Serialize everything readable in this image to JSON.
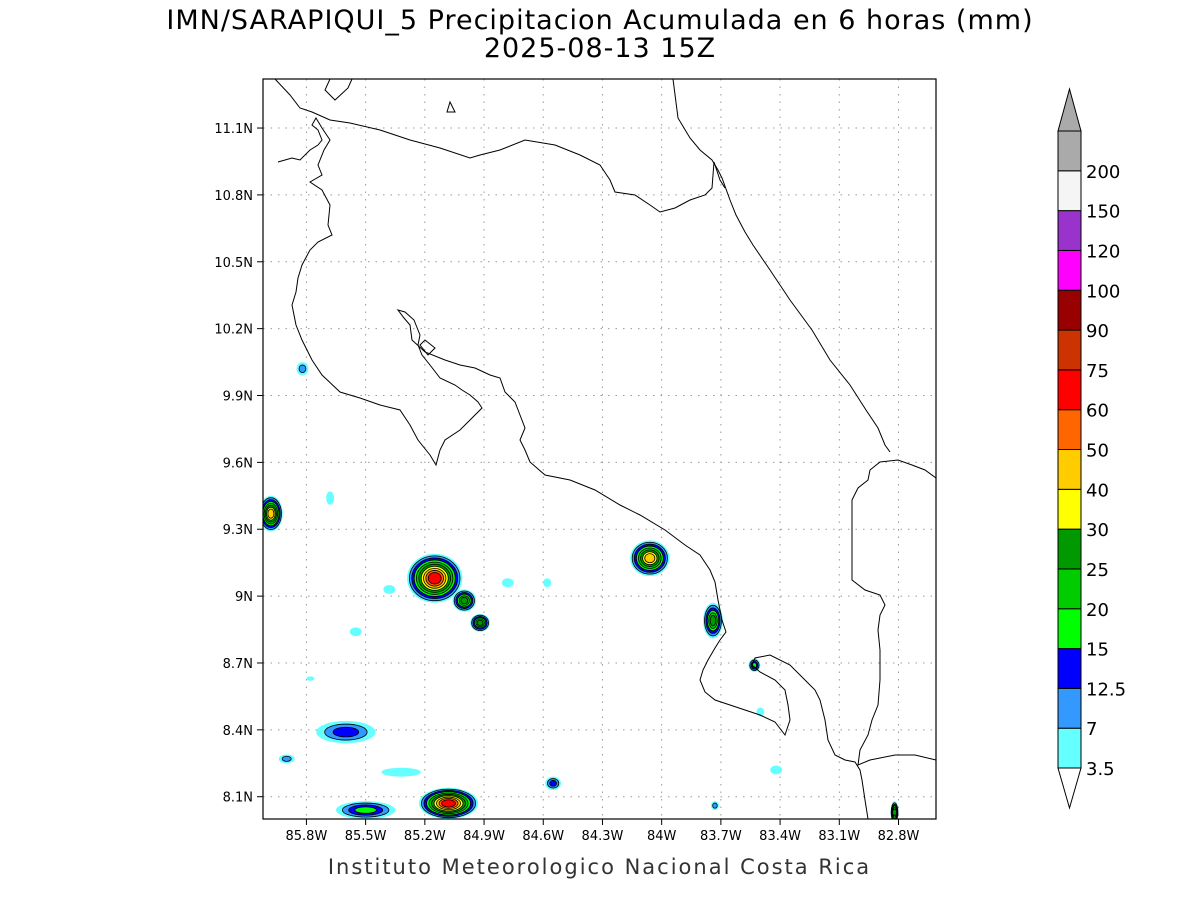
{
  "title": {
    "line1": "IMN/SARAPIQUI_5 Precipitacion Acumulada en 6 horas (mm)",
    "line2": "2025-08-13 15Z"
  },
  "footer": "Instituto Meteorologico Nacional Costa Rica",
  "map": {
    "lon_range": [
      -86.02,
      -82.61
    ],
    "lat_range": [
      8.0,
      11.32
    ],
    "lon_ticks": [
      {
        "value": -85.8,
        "label": "85.8W"
      },
      {
        "value": -85.5,
        "label": "85.5W"
      },
      {
        "value": -85.2,
        "label": "85.2W"
      },
      {
        "value": -84.9,
        "label": "84.9W"
      },
      {
        "value": -84.6,
        "label": "84.6W"
      },
      {
        "value": -84.3,
        "label": "84.3W"
      },
      {
        "value": -84.0,
        "label": "84W"
      },
      {
        "value": -83.7,
        "label": "83.7W"
      },
      {
        "value": -83.4,
        "label": "83.4W"
      },
      {
        "value": -83.1,
        "label": "83.1W"
      },
      {
        "value": -82.8,
        "label": "82.8W"
      }
    ],
    "lat_ticks": [
      {
        "value": 8.1,
        "label": "8.1N"
      },
      {
        "value": 8.4,
        "label": "8.4N"
      },
      {
        "value": 8.7,
        "label": "8.7N"
      },
      {
        "value": 9.0,
        "label": "9N"
      },
      {
        "value": 9.3,
        "label": "9.3N"
      },
      {
        "value": 9.6,
        "label": "9.6N"
      },
      {
        "value": 9.9,
        "label": "9.9N"
      },
      {
        "value": 10.2,
        "label": "10.2N"
      },
      {
        "value": 10.5,
        "label": "10.5N"
      },
      {
        "value": 10.8,
        "label": "10.8N"
      },
      {
        "value": 11.1,
        "label": "11.1N"
      }
    ],
    "grid": true,
    "rain_cells": [
      {
        "lon": -85.15,
        "lat": 9.08,
        "rx": 0.14,
        "ry": 0.11,
        "max_mm": 60
      },
      {
        "lon": -85.0,
        "lat": 8.98,
        "rx": 0.06,
        "ry": 0.05,
        "max_mm": 25
      },
      {
        "lon": -84.92,
        "lat": 8.88,
        "rx": 0.05,
        "ry": 0.04,
        "max_mm": 25
      },
      {
        "lon": -84.06,
        "lat": 9.17,
        "rx": 0.1,
        "ry": 0.08,
        "max_mm": 40
      },
      {
        "lon": -83.74,
        "lat": 8.89,
        "rx": 0.05,
        "ry": 0.08,
        "max_mm": 25
      },
      {
        "lon": -83.53,
        "lat": 8.69,
        "rx": 0.03,
        "ry": 0.03,
        "max_mm": 15
      },
      {
        "lon": -85.98,
        "lat": 9.37,
        "rx": 0.06,
        "ry": 0.08,
        "max_mm": 40
      },
      {
        "lon": -85.08,
        "lat": 8.07,
        "rx": 0.15,
        "ry": 0.07,
        "max_mm": 60
      },
      {
        "lon": -85.5,
        "lat": 8.04,
        "rx": 0.15,
        "ry": 0.04,
        "max_mm": 15
      },
      {
        "lon": -85.6,
        "lat": 8.39,
        "rx": 0.15,
        "ry": 0.05,
        "max_mm": 12.5
      },
      {
        "lon": -85.9,
        "lat": 8.27,
        "rx": 0.04,
        "ry": 0.02,
        "max_mm": 7
      },
      {
        "lon": -84.55,
        "lat": 8.16,
        "rx": 0.04,
        "ry": 0.03,
        "max_mm": 12.5
      },
      {
        "lon": -85.82,
        "lat": 10.02,
        "rx": 0.03,
        "ry": 0.03,
        "max_mm": 7
      },
      {
        "lon": -82.82,
        "lat": 8.03,
        "rx": 0.02,
        "ry": 0.05,
        "max_mm": 25
      },
      {
        "lon": -83.73,
        "lat": 8.06,
        "rx": 0.02,
        "ry": 0.02,
        "max_mm": 7
      },
      {
        "lon": -85.38,
        "lat": 9.03,
        "rx": 0.03,
        "ry": 0.02,
        "max_mm": 3.5
      },
      {
        "lon": -85.55,
        "lat": 8.84,
        "rx": 0.03,
        "ry": 0.02,
        "max_mm": 3.5
      },
      {
        "lon": -84.78,
        "lat": 9.06,
        "rx": 0.03,
        "ry": 0.02,
        "max_mm": 3.5
      },
      {
        "lon": -84.58,
        "lat": 9.06,
        "rx": 0.02,
        "ry": 0.02,
        "max_mm": 3.5
      },
      {
        "lon": -85.32,
        "lat": 8.21,
        "rx": 0.1,
        "ry": 0.02,
        "max_mm": 3.5
      },
      {
        "lon": -83.5,
        "lat": 8.48,
        "rx": 0.02,
        "ry": 0.02,
        "max_mm": 3.5
      },
      {
        "lon": -85.68,
        "lat": 9.44,
        "rx": 0.02,
        "ry": 0.03,
        "max_mm": 3.5
      },
      {
        "lon": -85.78,
        "lat": 8.63,
        "rx": 0.02,
        "ry": 0.01,
        "max_mm": 3.5
      },
      {
        "lon": -83.42,
        "lat": 8.22,
        "rx": 0.03,
        "ry": 0.02,
        "max_mm": 3.5
      }
    ]
  },
  "colorbar": {
    "levels": [
      {
        "label": "3.5",
        "color": "#66ffff"
      },
      {
        "label": "7",
        "color": "#3399ff"
      },
      {
        "label": "12.5",
        "color": "#0000ff"
      },
      {
        "label": "15",
        "color": "#00ff00"
      },
      {
        "label": "20",
        "color": "#00cc00"
      },
      {
        "label": "25",
        "color": "#009900"
      },
      {
        "label": "30",
        "color": "#ffff00"
      },
      {
        "label": "40",
        "color": "#ffcc00"
      },
      {
        "label": "50",
        "color": "#ff6600"
      },
      {
        "label": "60",
        "color": "#ff0000"
      },
      {
        "label": "75",
        "color": "#cc3300"
      },
      {
        "label": "90",
        "color": "#990000"
      },
      {
        "label": "100",
        "color": "#ff00ff"
      },
      {
        "label": "120",
        "color": "#9933cc"
      },
      {
        "label": "150",
        "color": "#f5f5f5"
      },
      {
        "label": "200",
        "color": "#aaaaaa"
      }
    ],
    "below_color": "#ffffff",
    "above_color": "#aaaaaa"
  }
}
